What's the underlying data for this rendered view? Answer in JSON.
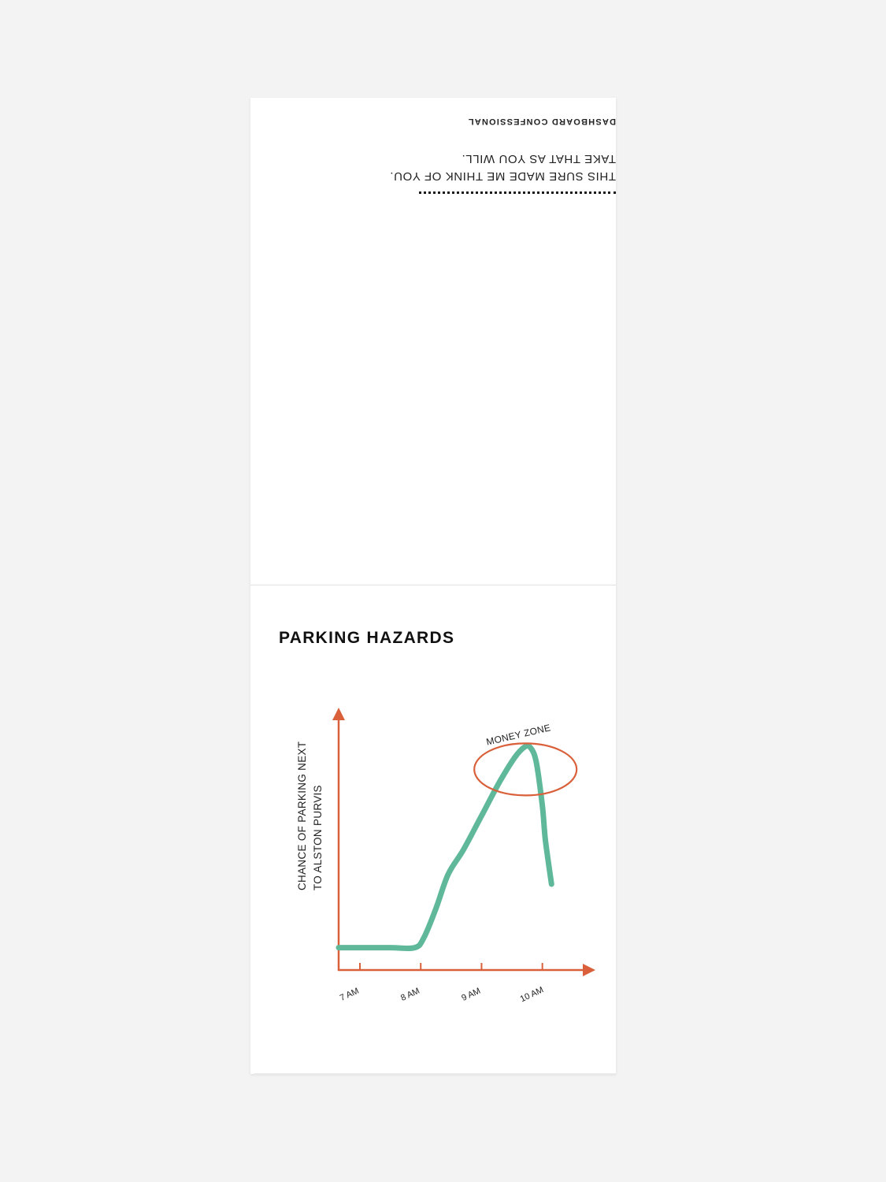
{
  "top_page": {
    "message_line1": "THIS SURE MADE ME THINK OF YOU.",
    "message_line2": "TAKE THAT AS YOU WILL.",
    "brand": "DASHBOARD CONFESSIONAL"
  },
  "colors": {
    "axis": "#d9603a",
    "curve": "#5fb89a",
    "ellipse": "#d9603a"
  },
  "chart_data": {
    "type": "line",
    "title": "PARKING HAZARDS",
    "ylabel": "CHANCE OF PARKING NEXT TO ALSTON PURVIS",
    "ylabel_lines": [
      "CHANCE OF PARKING NEXT",
      "TO ALSTON PURVIS"
    ],
    "xlabel": "",
    "x_ticks": [
      "7 AM",
      "8 AM",
      "9 AM",
      "10 AM"
    ],
    "x_tick_values": [
      7,
      8,
      9,
      10
    ],
    "xlim": [
      6.65,
      10.6
    ],
    "y_numeric_labels": false,
    "series": [
      {
        "x": [
          6.65,
          7.0,
          7.5,
          7.9,
          8.05,
          8.25,
          8.45,
          8.7,
          9.0,
          9.3,
          9.55,
          9.7,
          9.8,
          9.9,
          10.0,
          10.05,
          10.15
        ],
        "y": [
          0.04,
          0.04,
          0.04,
          0.04,
          0.08,
          0.2,
          0.34,
          0.44,
          0.58,
          0.72,
          0.82,
          0.86,
          0.86,
          0.8,
          0.62,
          0.48,
          0.3
        ]
      }
    ],
    "annotations": [
      {
        "text": "MONEY ZONE",
        "x": 9.8,
        "y": 0.86,
        "shape": "ellipse"
      }
    ]
  }
}
